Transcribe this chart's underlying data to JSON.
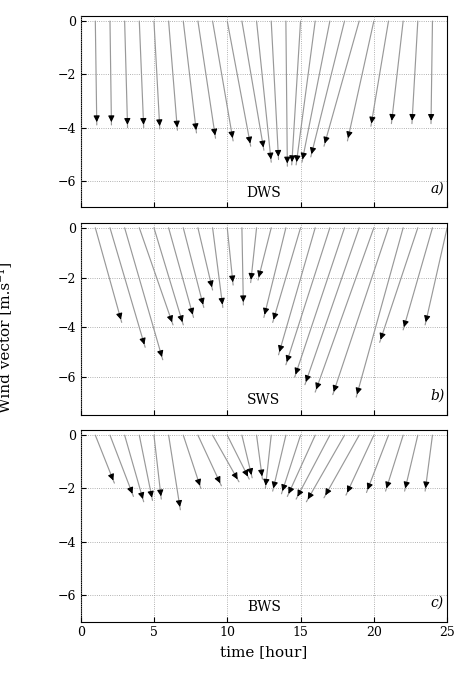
{
  "panels": [
    {
      "label": "a)",
      "station": "DWS",
      "ylim": [
        -7,
        0.2
      ],
      "yticks": [
        0,
        -2,
        -4,
        -6
      ],
      "arrows": [
        {
          "x": 1,
          "u": 0.1,
          "v": -3.9
        },
        {
          "x": 2,
          "u": 0.1,
          "v": -3.9
        },
        {
          "x": 3,
          "u": 0.2,
          "v": -4.0
        },
        {
          "x": 4,
          "u": 0.3,
          "v": -4.0
        },
        {
          "x": 5,
          "u": 0.4,
          "v": -4.05
        },
        {
          "x": 6,
          "u": 0.6,
          "v": -4.1
        },
        {
          "x": 7,
          "u": 0.9,
          "v": -4.2
        },
        {
          "x": 8,
          "u": 1.2,
          "v": -4.4
        },
        {
          "x": 9,
          "u": 1.4,
          "v": -4.5
        },
        {
          "x": 10,
          "u": 1.6,
          "v": -4.7
        },
        {
          "x": 11,
          "u": 1.5,
          "v": -4.85
        },
        {
          "x": 12,
          "u": 1.0,
          "v": -5.3
        },
        {
          "x": 13,
          "u": 0.5,
          "v": -5.2
        },
        {
          "x": 14,
          "u": 0.1,
          "v": -5.45
        },
        {
          "x": 15,
          "u": -0.6,
          "v": -5.4
        },
        {
          "x": 16,
          "u": -1.3,
          "v": -5.4
        },
        {
          "x": 17,
          "u": -1.9,
          "v": -5.3
        },
        {
          "x": 18,
          "u": -2.3,
          "v": -5.1
        },
        {
          "x": 19,
          "u": -2.4,
          "v": -4.7
        },
        {
          "x": 20,
          "u": -1.8,
          "v": -4.5
        },
        {
          "x": 21,
          "u": -1.2,
          "v": -3.95
        },
        {
          "x": 22,
          "u": -0.8,
          "v": -3.85
        },
        {
          "x": 23,
          "u": -0.4,
          "v": -3.85
        },
        {
          "x": 24,
          "u": -0.1,
          "v": -3.85
        }
      ]
    },
    {
      "label": "b)",
      "station": "SWS",
      "ylim": [
        -7.5,
        0.2
      ],
      "yticks": [
        0,
        -2,
        -4,
        -6
      ],
      "arrows": [
        {
          "x": 1,
          "u": 1.8,
          "v": -3.8
        },
        {
          "x": 2,
          "u": 2.4,
          "v": -4.8
        },
        {
          "x": 3,
          "u": 2.6,
          "v": -5.3
        },
        {
          "x": 4,
          "u": 2.3,
          "v": -3.9
        },
        {
          "x": 5,
          "u": 2.0,
          "v": -3.9
        },
        {
          "x": 6,
          "u": 1.7,
          "v": -3.6
        },
        {
          "x": 7,
          "u": 1.4,
          "v": -3.2
        },
        {
          "x": 8,
          "u": 1.0,
          "v": -2.5
        },
        {
          "x": 9,
          "u": 0.7,
          "v": -3.2
        },
        {
          "x": 10,
          "u": 0.4,
          "v": -2.3
        },
        {
          "x": 11,
          "u": 0.1,
          "v": -3.1
        },
        {
          "x": 12,
          "u": -0.4,
          "v": -2.2
        },
        {
          "x": 13,
          "u": -0.9,
          "v": -2.1
        },
        {
          "x": 14,
          "u": -1.5,
          "v": -3.6
        },
        {
          "x": 15,
          "u": -1.9,
          "v": -3.8
        },
        {
          "x": 16,
          "u": -2.5,
          "v": -5.1
        },
        {
          "x": 17,
          "u": -3.0,
          "v": -5.5
        },
        {
          "x": 18,
          "u": -3.4,
          "v": -6.0
        },
        {
          "x": 19,
          "u": -3.7,
          "v": -6.3
        },
        {
          "x": 20,
          "u": -4.0,
          "v": -6.6
        },
        {
          "x": 21,
          "u": -3.8,
          "v": -6.7
        },
        {
          "x": 22,
          "u": -3.2,
          "v": -6.8
        },
        {
          "x": 23,
          "u": -2.6,
          "v": -4.6
        },
        {
          "x": 24,
          "u": -2.0,
          "v": -4.1
        },
        {
          "x": 25,
          "u": -1.5,
          "v": -3.9
        }
      ]
    },
    {
      "label": "c)",
      "station": "BWS",
      "ylim": [
        -7,
        0.2
      ],
      "yticks": [
        0,
        -2,
        -4,
        -6
      ],
      "arrows": [
        {
          "x": 1,
          "u": 1.3,
          "v": -1.8
        },
        {
          "x": 2,
          "u": 1.6,
          "v": -2.3
        },
        {
          "x": 3,
          "u": 1.3,
          "v": -2.5
        },
        {
          "x": 4,
          "u": 0.9,
          "v": -2.45
        },
        {
          "x": 5,
          "u": 0.5,
          "v": -2.4
        },
        {
          "x": 6,
          "u": 0.8,
          "v": -2.8
        },
        {
          "x": 7,
          "u": 1.2,
          "v": -2.0
        },
        {
          "x": 8,
          "u": 1.6,
          "v": -1.9
        },
        {
          "x": 9,
          "u": 1.8,
          "v": -1.75
        },
        {
          "x": 10,
          "u": 1.5,
          "v": -1.65
        },
        {
          "x": 11,
          "u": 0.7,
          "v": -1.6
        },
        {
          "x": 12,
          "u": 0.4,
          "v": -1.65
        },
        {
          "x": 13,
          "u": -0.4,
          "v": -2.0
        },
        {
          "x": 14,
          "u": -0.9,
          "v": -2.1
        },
        {
          "x": 15,
          "u": -1.3,
          "v": -2.2
        },
        {
          "x": 16,
          "u": -1.9,
          "v": -2.3
        },
        {
          "x": 17,
          "u": -2.3,
          "v": -2.4
        },
        {
          "x": 18,
          "u": -2.6,
          "v": -2.5
        },
        {
          "x": 19,
          "u": -2.4,
          "v": -2.35
        },
        {
          "x": 20,
          "u": -1.9,
          "v": -2.25
        },
        {
          "x": 21,
          "u": -1.5,
          "v": -2.15
        },
        {
          "x": 22,
          "u": -1.2,
          "v": -2.1
        },
        {
          "x": 23,
          "u": -0.9,
          "v": -2.1
        },
        {
          "x": 24,
          "u": -0.5,
          "v": -2.1
        }
      ]
    }
  ],
  "xlim": [
    0,
    25
  ],
  "xticks": [
    0,
    5,
    10,
    15,
    20,
    25
  ],
  "xlabel": "time [hour]",
  "ylabel": "Wind vector [m.s⁻¹]",
  "arrow_color": "black",
  "line_color": "#999999",
  "grid_color": "#999999",
  "bg_color": "white",
  "fontsize": 10,
  "label_fontsize": 11
}
